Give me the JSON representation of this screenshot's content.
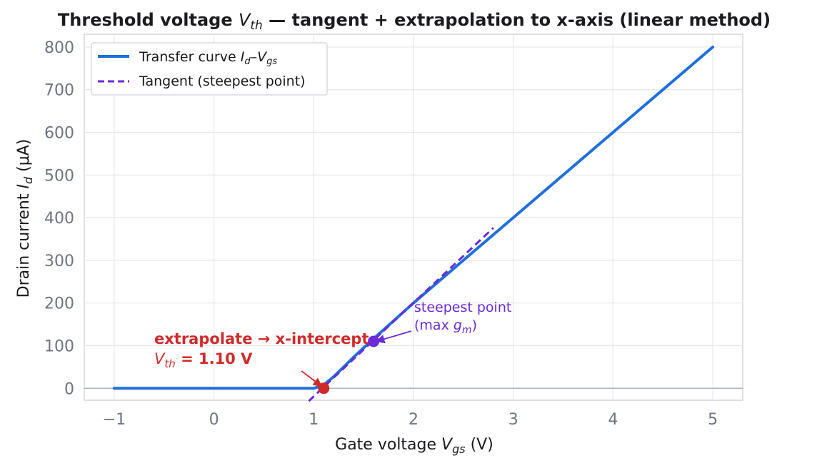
{
  "chart_data": {
    "type": "line",
    "title": {
      "prefix": "Threshold voltage ",
      "var": "V",
      "var_sub": "th",
      "suffix": " — tangent + extrapolation to x-axis (linear method)"
    },
    "xlabel": {
      "prefix": "Gate voltage  ",
      "var": "V",
      "var_sub": "gs",
      "suffix": "  (V)"
    },
    "ylabel": {
      "prefix": "Drain current  ",
      "var": "I",
      "var_sub": "d",
      "suffix": "  (μA)"
    },
    "xlim": [
      -1.3,
      5.3
    ],
    "ylim": [
      -28,
      830
    ],
    "xticks": [
      {
        "value": -1,
        "label": "−1"
      },
      {
        "value": 0,
        "label": "0"
      },
      {
        "value": 1,
        "label": "1"
      },
      {
        "value": 2,
        "label": "2"
      },
      {
        "value": 3,
        "label": "3"
      },
      {
        "value": 4,
        "label": "4"
      },
      {
        "value": 5,
        "label": "5"
      }
    ],
    "yticks": [
      {
        "value": 0,
        "label": "0"
      },
      {
        "value": 100,
        "label": "100"
      },
      {
        "value": 200,
        "label": "200"
      },
      {
        "value": 300,
        "label": "300"
      },
      {
        "value": 400,
        "label": "400"
      },
      {
        "value": 500,
        "label": "500"
      },
      {
        "value": 600,
        "label": "600"
      },
      {
        "value": 700,
        "label": "700"
      },
      {
        "value": 800,
        "label": "800"
      }
    ],
    "grid": true,
    "legend_position": "top-left",
    "series": [
      {
        "name": "Transfer curve",
        "legend": {
          "prefix": "Transfer curve  ",
          "v1": "I",
          "v1_sub": "d",
          "dash": "–",
          "v2": "V",
          "v2_sub": "gs"
        },
        "style": "solid",
        "color": "#1f6fdb",
        "x": [
          -1.0,
          0.0,
          1.0,
          1.1,
          1.2,
          1.3,
          1.4,
          1.5,
          1.6,
          1.8,
          2.0,
          2.5,
          3.0,
          4.0,
          5.0
        ],
        "y": [
          0,
          0,
          0,
          8,
          27,
          50,
          73,
          95,
          116,
          158,
          200,
          300,
          400,
          600,
          800
        ]
      },
      {
        "name": "Tangent (steepest point)",
        "legend": {
          "prefix": "Tangent (steepest point)"
        },
        "style": "dashed",
        "color": "#6a2bd8",
        "x": [
          0.95,
          2.8
        ],
        "y": [
          -30,
          376
        ]
      }
    ],
    "points": [
      {
        "name": "vth-point",
        "x": 1.1,
        "y": 0,
        "color": "#cf2a2a"
      },
      {
        "name": "steepest-point",
        "x": 1.6,
        "y": 110,
        "color": "#6a2bd8"
      }
    ],
    "annotations": [
      {
        "name": "extrapolate-annotation",
        "line1": "extrapolate → x-intercept",
        "line2_var": "V",
        "line2_sub": "th",
        "line2_rest": " = 1.10 V",
        "color": "#cf2a2a"
      },
      {
        "name": "steepest-annotation",
        "line1": "steepest point",
        "line2_prefix": "(max ",
        "line2_var": "g",
        "line2_sub": "m",
        "line2_suffix": ")",
        "color": "#6a2bd8"
      }
    ],
    "colors": {
      "curve": "#1f6fdb",
      "tangent": "#6a2bd8",
      "vth": "#cf2a2a",
      "grid": "#e6e6ea",
      "spine": "#c8cbd3",
      "zero_line": "#aeb3c2"
    }
  }
}
